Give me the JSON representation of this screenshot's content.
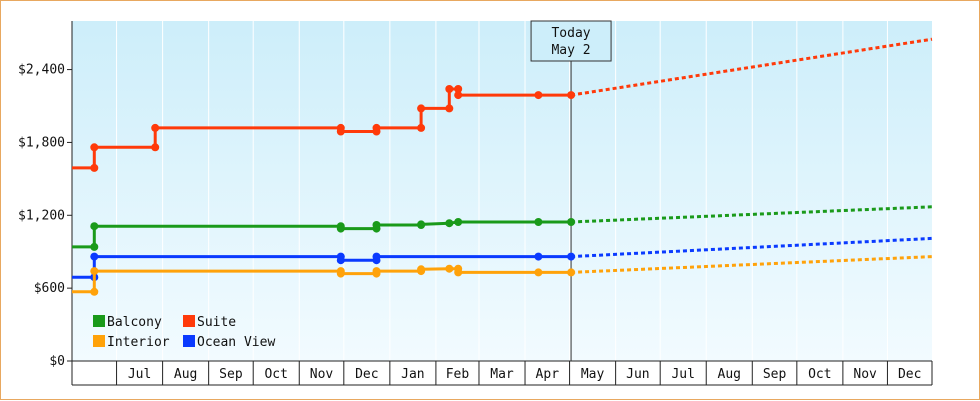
{
  "chart_data": {
    "type": "line",
    "title": "",
    "xlabel": "",
    "ylabel": "",
    "x_axis": {
      "months": [
        "Jul",
        "Aug",
        "Sep",
        "Oct",
        "Nov",
        "Dec",
        "Jan",
        "Feb",
        "Mar",
        "Apr",
        "May",
        "Jun",
        "Jul",
        "Aug",
        "Sep",
        "Oct",
        "Nov",
        "Dec"
      ],
      "range": [
        "2023-06-01",
        "2024-12-31"
      ]
    },
    "y_axis": {
      "ticks": [
        0,
        600,
        1200,
        1800,
        2400
      ],
      "tick_labels": [
        "$0",
        "$600",
        "$1,200",
        "$1,800",
        "$2,400"
      ],
      "ylim": [
        0,
        2800
      ]
    },
    "grid": {
      "vertical_month_lines": true,
      "horizontal": false
    },
    "background": {
      "gradient_top": "#cdeefa",
      "gradient_bottom": "#f2fbff"
    },
    "today_marker": {
      "line1": "Today",
      "line2": "May 2",
      "date": "2024-05-02"
    },
    "legend": {
      "placement": "bottom-left",
      "entries": [
        {
          "label": "Balcony",
          "color": "#1a9a1a"
        },
        {
          "label": "Suite",
          "color": "#ff3a0a"
        },
        {
          "label": "Interior",
          "color": "#ffa20a"
        },
        {
          "label": "Ocean View",
          "color": "#0a3aff"
        }
      ]
    },
    "series": [
      {
        "name": "Suite",
        "color": "#ff3a0a",
        "history": [
          [
            "2023-06-01",
            1590
          ],
          [
            "2023-06-16",
            1590
          ],
          [
            "2023-06-16",
            1760
          ],
          [
            "2023-07-27",
            1760
          ],
          [
            "2023-07-27",
            1920
          ],
          [
            "2023-11-29",
            1920
          ],
          [
            "2023-11-29",
            1890
          ],
          [
            "2023-12-23",
            1890
          ],
          [
            "2023-12-23",
            1920
          ],
          [
            "2024-01-22",
            1920
          ],
          [
            "2024-01-22",
            2080
          ],
          [
            "2024-02-10",
            2080
          ],
          [
            "2024-02-10",
            2240
          ],
          [
            "2024-02-16",
            2240
          ],
          [
            "2024-02-16",
            2190
          ],
          [
            "2024-04-10",
            2190
          ],
          [
            "2024-05-02",
            2190
          ]
        ],
        "projection": [
          [
            "2024-05-02",
            2190
          ],
          [
            "2024-12-31",
            2650
          ]
        ]
      },
      {
        "name": "Balcony",
        "color": "#1a9a1a",
        "history": [
          [
            "2023-06-01",
            940
          ],
          [
            "2023-06-16",
            940
          ],
          [
            "2023-06-16",
            1110
          ],
          [
            "2023-11-29",
            1110
          ],
          [
            "2023-11-29",
            1090
          ],
          [
            "2023-12-23",
            1090
          ],
          [
            "2023-12-23",
            1120
          ],
          [
            "2024-01-22",
            1120
          ],
          [
            "2024-01-22",
            1125
          ],
          [
            "2024-02-10",
            1135
          ],
          [
            "2024-02-16",
            1145
          ],
          [
            "2024-04-10",
            1145
          ],
          [
            "2024-05-02",
            1145
          ]
        ],
        "projection": [
          [
            "2024-05-02",
            1145
          ],
          [
            "2024-12-31",
            1270
          ]
        ]
      },
      {
        "name": "Ocean View",
        "color": "#0a3aff",
        "history": [
          [
            "2023-06-01",
            690
          ],
          [
            "2023-06-16",
            690
          ],
          [
            "2023-06-16",
            860
          ],
          [
            "2023-11-29",
            860
          ],
          [
            "2023-11-29",
            830
          ],
          [
            "2023-12-23",
            830
          ],
          [
            "2023-12-23",
            860
          ],
          [
            "2024-04-10",
            860
          ],
          [
            "2024-05-02",
            860
          ]
        ],
        "projection": [
          [
            "2024-05-02",
            860
          ],
          [
            "2024-12-31",
            1010
          ]
        ]
      },
      {
        "name": "Interior",
        "color": "#ffa20a",
        "history": [
          [
            "2023-06-01",
            570
          ],
          [
            "2023-06-16",
            570
          ],
          [
            "2023-06-16",
            740
          ],
          [
            "2023-11-29",
            740
          ],
          [
            "2023-11-29",
            720
          ],
          [
            "2023-12-23",
            720
          ],
          [
            "2023-12-23",
            740
          ],
          [
            "2024-01-22",
            740
          ],
          [
            "2024-01-22",
            755
          ],
          [
            "2024-02-10",
            760
          ],
          [
            "2024-02-16",
            760
          ],
          [
            "2024-02-16",
            730
          ],
          [
            "2024-04-10",
            730
          ],
          [
            "2024-05-02",
            730
          ]
        ],
        "projection": [
          [
            "2024-05-02",
            730
          ],
          [
            "2024-12-31",
            860
          ]
        ]
      }
    ]
  }
}
